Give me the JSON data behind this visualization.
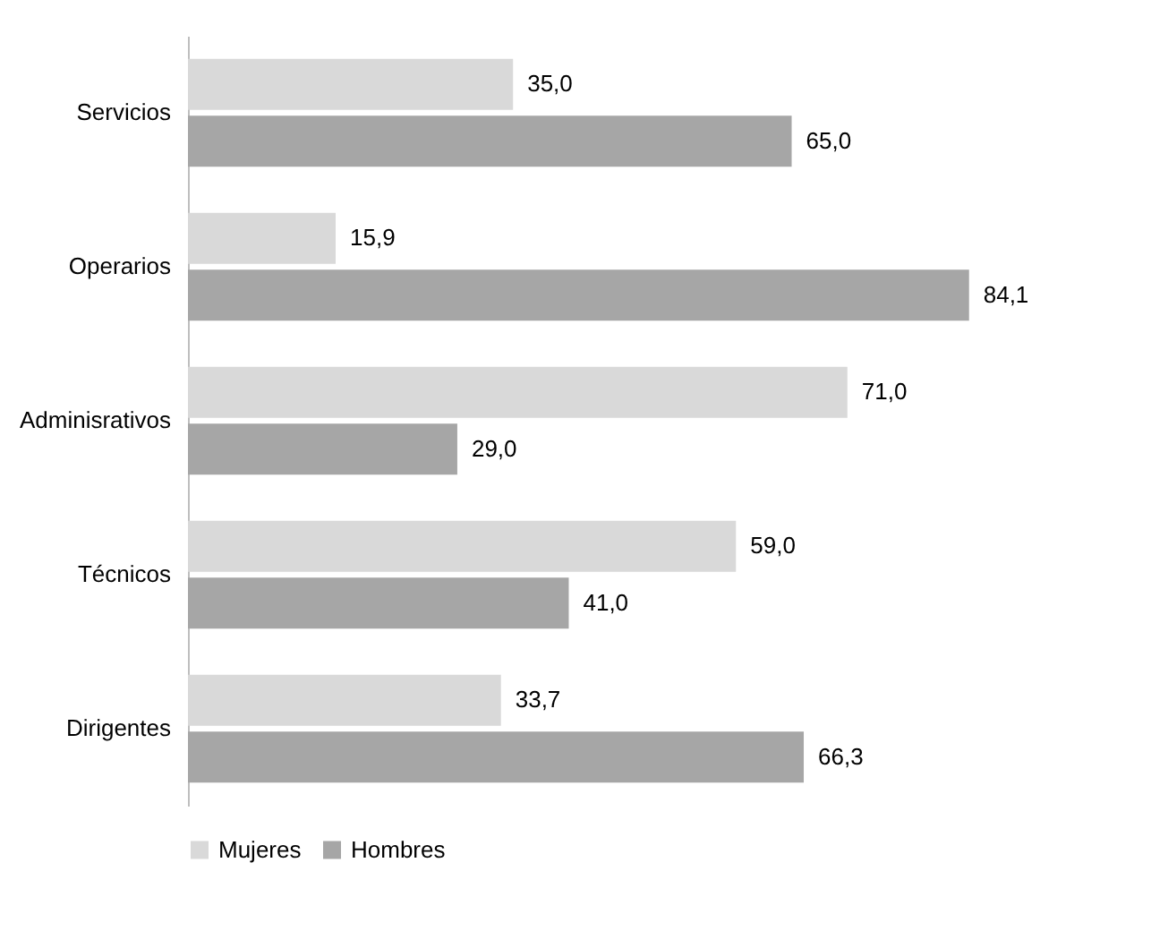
{
  "chart_data": {
    "type": "bar",
    "orientation": "horizontal",
    "categories": [
      "Servicios",
      "Operarios",
      "Adminisrativos",
      "Técnicos",
      "Dirigentes"
    ],
    "series": [
      {
        "name": "Mujeres",
        "color": "#d9d9d9",
        "values": [
          35.0,
          15.9,
          71.0,
          59.0,
          33.7
        ],
        "value_labels": [
          "35,0",
          "15,9",
          "71,0",
          "59,0",
          "33,7"
        ]
      },
      {
        "name": "Hombres",
        "color": "#a6a6a6",
        "values": [
          65.0,
          84.1,
          29.0,
          41.0,
          66.3
        ],
        "value_labels": [
          "65,0",
          "84,1",
          "29,0",
          "41,0",
          "66,3"
        ]
      }
    ],
    "legend": "bottom",
    "grid": false
  }
}
